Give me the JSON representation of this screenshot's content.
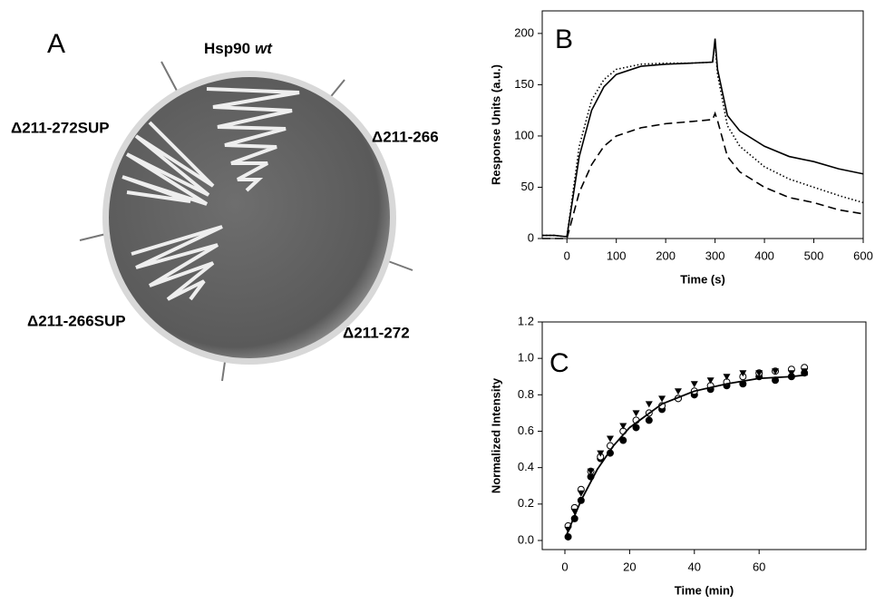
{
  "panel_a": {
    "label": "A",
    "strain_top": "Hsp90",
    "strain_top_italic": "wt",
    "strains": [
      "Δ211-272SUP",
      "Δ211-266",
      "Δ211-266SUP",
      "Δ211-272"
    ]
  },
  "chart_data": [
    {
      "type": "line",
      "label": "B",
      "xlabel": "Time (s)",
      "ylabel": "Response Units (a.u.)",
      "x": [
        -50,
        -25,
        -5,
        0,
        25,
        50,
        75,
        100,
        150,
        200,
        250,
        295,
        300,
        305,
        325,
        350,
        400,
        450,
        500,
        550,
        600
      ],
      "series": [
        {
          "dash": "solid",
          "color": "#000000",
          "values": [
            3,
            3,
            2,
            2,
            80,
            125,
            148,
            160,
            168,
            170,
            171,
            172,
            195,
            165,
            120,
            105,
            90,
            80,
            75,
            68,
            63
          ]
        },
        {
          "dash": "dotted",
          "color": "#000000",
          "values": [
            3,
            3,
            2,
            2,
            90,
            135,
            155,
            165,
            170,
            171,
            171,
            172,
            190,
            160,
            110,
            90,
            70,
            58,
            50,
            42,
            35
          ]
        },
        {
          "dash": "dashed",
          "color": "#000000",
          "values": [
            0,
            0,
            0,
            0,
            45,
            72,
            90,
            100,
            108,
            112,
            114,
            116,
            122,
            115,
            80,
            65,
            50,
            40,
            35,
            28,
            24
          ]
        }
      ],
      "xlim": [
        -50,
        600
      ],
      "ylim": [
        0,
        222
      ],
      "xticks": [
        0,
        100,
        200,
        300,
        400,
        500,
        600
      ],
      "yticks": [
        0,
        50,
        100,
        150,
        200
      ]
    },
    {
      "type": "scatter",
      "label": "C",
      "xlabel": "Time (min)",
      "ylabel": "Normalized Intensity",
      "x": [
        1,
        3,
        5,
        8,
        11,
        14,
        18,
        22,
        26,
        30,
        35,
        40,
        45,
        50,
        55,
        60,
        65,
        70,
        74
      ],
      "series": [
        {
          "marker": "filled-circle",
          "color": "#000000",
          "values": [
            0.02,
            0.12,
            0.22,
            0.35,
            0.45,
            0.48,
            0.55,
            0.62,
            0.66,
            0.72,
            0.78,
            0.8,
            0.83,
            0.85,
            0.86,
            0.9,
            0.88,
            0.9,
            0.92
          ]
        },
        {
          "marker": "open-circle",
          "color": "#000000",
          "values": [
            0.08,
            0.18,
            0.28,
            0.38,
            0.46,
            0.52,
            0.6,
            0.66,
            0.7,
            0.74,
            0.78,
            0.82,
            0.85,
            0.87,
            0.9,
            0.92,
            0.93,
            0.94,
            0.95
          ]
        },
        {
          "marker": "triangle",
          "color": "#000000",
          "values": [
            0.06,
            0.16,
            0.26,
            0.38,
            0.48,
            0.56,
            0.63,
            0.7,
            0.75,
            0.78,
            0.82,
            0.86,
            0.88,
            0.9,
            0.92,
            0.92,
            0.93,
            0.92,
            0.93
          ]
        }
      ],
      "fit": {
        "x": [
          0.5,
          5,
          10,
          15,
          20,
          30,
          40,
          50,
          60,
          70,
          75
        ],
        "values": [
          0.03,
          0.22,
          0.39,
          0.52,
          0.62,
          0.75,
          0.82,
          0.86,
          0.89,
          0.9,
          0.91
        ]
      },
      "xlim": [
        -7,
        93
      ],
      "ylim": [
        -0.05,
        1.2
      ],
      "xticks": [
        0,
        20,
        40,
        60
      ],
      "yticks": [
        {
          "value": 0,
          "label": "0.0"
        },
        0.2,
        0.4,
        0.6,
        0.8,
        {
          "value": 1,
          "label": "1.0"
        },
        1.2
      ]
    }
  ]
}
